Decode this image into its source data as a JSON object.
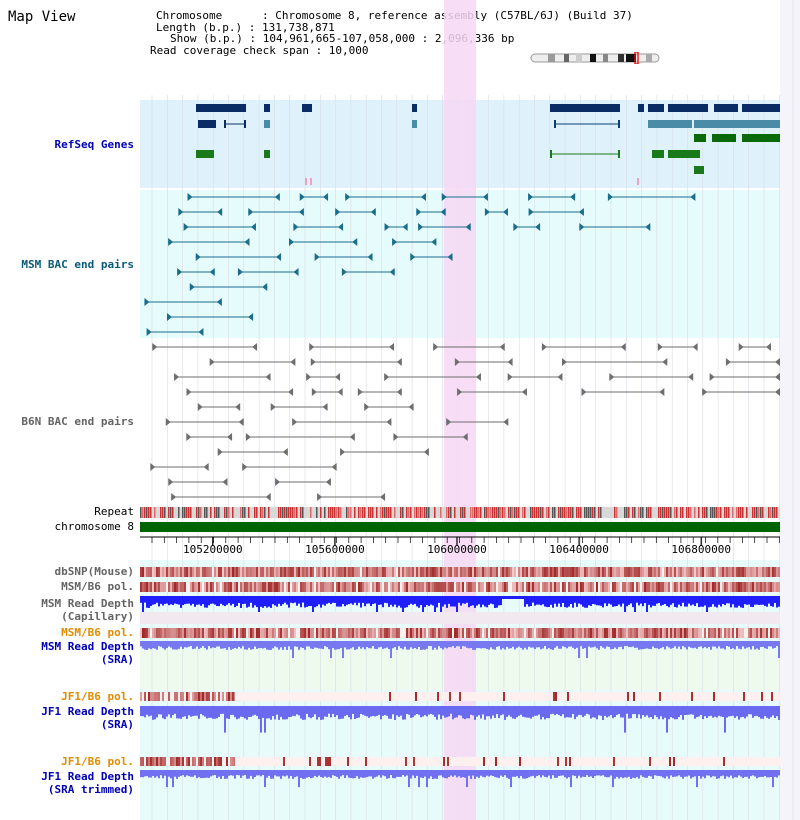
{
  "title": "Map View",
  "info": {
    "chromosome": "Chromosome      : Chromosome 8, reference assembly (C57BL/6J) (Build 37)",
    "length": "Length (b.p.) : 131,738,871",
    "show": "Show (b.p.) : 104,961,665-107,058,000 : 2,096,336 bp",
    "coverage": "Read coverage check span : 10,000"
  },
  "tracks": {
    "refseq": "RefSeq Genes",
    "msm_bac": "MSM BAC end pairs",
    "b6n_bac": "B6N BAC end pairs",
    "repeat": "Repeat",
    "chromosome": "chromosome 8",
    "dbsnp": "dbSNP(Mouse)",
    "msm_pol": "MSM/B6 pol.",
    "msm_depth_cap": "MSM Read Depth\n(Capillary)",
    "msm_pol2": "MSM/B6 pol.",
    "msm_depth_sra": "MSM Read Depth\n(SRA)",
    "jf1_pol": "JF1/B6 pol.",
    "jf1_depth_sra": "JF1 Read Depth\n(SRA)",
    "jf1_pol2": "JF1/B6 pol.",
    "jf1_depth_trim": "JF1 Read Depth\n(SRA trimmed)"
  },
  "axis": {
    "ticks": [
      "105200000",
      "105600000",
      "106000000",
      "106400000",
      "106800000"
    ],
    "range": [
      104961665,
      107058000
    ]
  },
  "colors": {
    "refseq_bg": "#dff2fb",
    "msm_bg": "#e6fbfb",
    "highlight": "#f6d8f4",
    "chromosome": "#006400",
    "depth": "#3c3cff",
    "pol": "#e65050"
  }
}
